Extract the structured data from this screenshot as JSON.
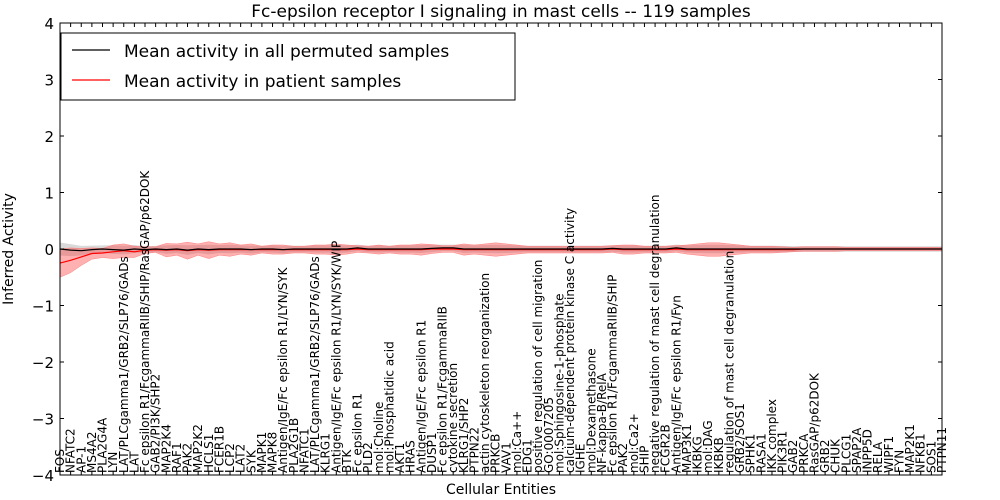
{
  "chart_data": {
    "type": "line",
    "title": "Fc-epsilon receptor I signaling in mast cells -- 119 samples",
    "xlabel": "Cellular Entities",
    "ylabel": "Inferred Activity",
    "ylim": [
      -4,
      4
    ],
    "yticks": [
      "4",
      "3",
      "2",
      "1",
      "0",
      "−1",
      "−2",
      "−3",
      "−4"
    ],
    "legend": {
      "position": "top-left",
      "entries": [
        {
          "label": "Mean activity in all permuted samples",
          "color": "#000000"
        },
        {
          "label": "Mean activity in patient samples",
          "color": "#ff0000"
        }
      ]
    },
    "categories": [
      "FOS",
      "NFATC2",
      "AP-1",
      "MS4A2",
      "PLA2G4A",
      "LYN",
      "LAT/PLCgamma1/GRB2/SLP76/GADs",
      "LAT",
      "Fc epsilon R1/FcgammaRIIB/SHIP/RasGAP/p62DOK",
      "GAB2/PI3K/SHP2",
      "MAP2K4",
      "RAF1",
      "PAK2",
      "MAP2K2",
      "HCLS1",
      "FCER1B",
      "LCP2",
      "LAT2",
      "SYK",
      "MAPK1",
      "MAPK8",
      "Antigen/IgE/Fc epsilon R1/LYN/SYK",
      "PLA2G1B",
      "NFATC1",
      "LAT/PLCgamma1/GRB2/SLP76/GADs",
      "KLRG1",
      "Antigen/IgE/Fc epsilon R1/LYN/SYK/WIP",
      "BTK",
      "Fc epsilon R1",
      "PLD2",
      "mol:Choline",
      "mol:Phosphatidic acid",
      "AKT1",
      "HRAS",
      "Antigen/IgE/Fc epsilon R1",
      "DUSP1",
      "Fc epsilon R1/FcgammaRIIB",
      "cytokine secretion",
      "KLRG1/SHP2",
      "PTPN22",
      "actin cytoskeleton reorganization",
      "PRKCB",
      "VAV1",
      "mol:Ca++",
      "EDG1",
      "positive regulation of cell migration",
      "GO:0007205",
      "mol:Sphingosine-1-phosphate",
      "calcium-dependent protein kinase C activity",
      "IGHE",
      "mol:Dexamethasone",
      "NF-kappa-B/RelA",
      "Fc epsilon R1/FcgammaRIIB/SHIP",
      "PAK2",
      "mol:Ca2+",
      "SHIP",
      "negative regulation of mast cell degranulation",
      "FCGR2B",
      "Antigen/IgE/Fc epsilon R1/Fyn",
      "MAP3K1",
      "IKBKG",
      "mol:DAG",
      "IKBKB",
      "regulation of mast cell degranulation",
      "GRB2/SOS1",
      "SPHK1",
      "RASA1",
      "IKK complex",
      "PIK3R1",
      "GAB2",
      "PRKCA",
      "RasGAP/p62DOK",
      "GRB2",
      "CHUK",
      "PLCG1",
      "SPAP2A",
      "INPP5D",
      "RELA",
      "WIPF1",
      "FYN",
      "MAP2K1",
      "NFKB1",
      "SOS1",
      "PTPN11"
    ],
    "visible_tick_labels": [
      "FOS",
      "NFATC2",
      "AP-1",
      "MS4A2",
      "PLA2G4A",
      "LYN",
      "LAT/PLCgamma1/GRB2/SLP76/GADs",
      "LAT",
      "Fc epsilon R1/FcgammaRIIB/SHIP/RasGAP/p62DOK",
      "GAB2/PI3K/SHP2",
      "MAP2K4",
      "RAF1",
      "PAK2",
      "MAP2K2",
      "HCLS1",
      "FCER1B",
      "LCP2",
      "LAT2",
      "SYK",
      "MAPK1",
      "MAPK8",
      "Antigen/IgE/Fc epsilon R1/LYN/SYK",
      "PLA2G1B",
      "NFATC1",
      "LAT/PLCgamma1/GRB2/SLP76/GADs",
      "KLRG1",
      "Antigen/IgE/Fc epsilon R1/LYN/SYK/WIP",
      "BTK",
      "Fc epsilon R1",
      "PLD2",
      "mol:Choline",
      "mol:Phosphatidic acid",
      "AKT1",
      "HRAS",
      "Antigen/IgE/Fc epsilon R1",
      "DUSP1",
      "Fc epsilon R1/FcgammaRIIB",
      "cytokine secretion",
      "KLRG1/SHP2",
      "PTPN22",
      "actin cytoskeleton reorganization",
      "PRKCB",
      "VAV1",
      "mol:Ca++",
      "EDG1",
      "positive regulation of cell migration",
      "GO:0007205",
      "mol:Sphingosine-1-phosphate",
      "calcium-dependent protein kinase C activity",
      "IGHE",
      "mol:Dexamethasone",
      "NF-kappa-B/RelA",
      "Fc epsilon R1/FcgammaRIIB/SHIP",
      "PAK2",
      "mol:Ca2+",
      "SHIP",
      "negative regulation of mast cell degranulation",
      "FCGR2B",
      "Antigen/IgE/Fc epsilon R1/Fyn",
      "MAP3K1",
      "IKBKG",
      "mol:DAG",
      "IKBKB",
      "regulation of mast cell degranulation",
      "GRB2/SOS1",
      "SPHK1",
      "RASA1",
      "IKK complex",
      "PIK3R1",
      "GAB2",
      "PRKCA",
      "RasGAP/p62DOK",
      "GRB2",
      "CHUK",
      "PLCG1",
      "SPAP2A",
      "INPP5D",
      "RELA",
      "WIPF1",
      "FYN",
      "MAP2K1",
      "NFKB1",
      "SOS1",
      "PTPN11"
    ],
    "series": [
      {
        "name": "Mean activity in all permuted samples",
        "color": "#000000",
        "values": [
          0.0,
          -0.02,
          -0.03,
          -0.01,
          0.0,
          -0.01,
          -0.02,
          0.0,
          -0.01,
          0.0,
          -0.01,
          0.0,
          -0.02,
          0.0,
          -0.01,
          0.0,
          0.0,
          0.0,
          -0.01,
          0.0,
          0.0,
          -0.01,
          0.0,
          0.0,
          0.0,
          0.0,
          0.0,
          0.0,
          0.02,
          0.0,
          0.0,
          0.0,
          0.0,
          0.0,
          0.0,
          0.01,
          0.02,
          0.02,
          0.0,
          0.0,
          0.0,
          0.0,
          0.0,
          0.0,
          0.0,
          0.0,
          0.0,
          0.0,
          0.0,
          0.0,
          0.0,
          0.0,
          0.01,
          0.0,
          0.0,
          0.0,
          0.0,
          0.0,
          0.02,
          0.0,
          0.0,
          0.0,
          0.0,
          0.0,
          0.0,
          0.0,
          0.0,
          0.0,
          0.0,
          0.0,
          0.0,
          0.0,
          0.0,
          0.0,
          0.0,
          0.0,
          0.0,
          0.0,
          0.0,
          0.0,
          0.0,
          0.0,
          0.0,
          0.0
        ]
      },
      {
        "name": "Mean activity in patient samples",
        "color": "#ff0000",
        "values": [
          -0.25,
          -0.2,
          -0.14,
          -0.08,
          -0.07,
          -0.05,
          -0.03,
          -0.05,
          -0.02,
          -0.01,
          -0.02,
          -0.01,
          -0.03,
          -0.01,
          -0.02,
          -0.01,
          -0.01,
          -0.01,
          -0.01,
          -0.01,
          -0.01,
          -0.01,
          -0.01,
          -0.01,
          -0.01,
          -0.01,
          -0.01,
          -0.01,
          0.0,
          -0.01,
          -0.01,
          -0.01,
          -0.01,
          -0.01,
          -0.01,
          0.0,
          0.0,
          0.0,
          -0.01,
          -0.01,
          -0.01,
          -0.01,
          -0.01,
          -0.01,
          -0.01,
          -0.01,
          -0.01,
          -0.01,
          -0.01,
          -0.01,
          -0.01,
          -0.01,
          0.0,
          -0.01,
          -0.01,
          -0.01,
          -0.01,
          -0.01,
          0.0,
          -0.01,
          -0.01,
          -0.01,
          -0.01,
          -0.01,
          -0.01,
          -0.01,
          -0.01,
          -0.01,
          -0.01,
          -0.01,
          0.0,
          0.0,
          0.0,
          0.0,
          0.0,
          0.0,
          0.0,
          0.0,
          0.0,
          0.0,
          0.0,
          0.0,
          0.0,
          0.0
        ]
      }
    ],
    "band_halfwidth": [
      0.25,
      0.22,
      0.15,
      0.1,
      0.08,
      0.12,
      0.12,
      0.1,
      0.06,
      0.05,
      0.12,
      0.1,
      0.15,
      0.1,
      0.15,
      0.1,
      0.12,
      0.08,
      0.1,
      0.06,
      0.08,
      0.08,
      0.06,
      0.06,
      0.08,
      0.08,
      0.1,
      0.08,
      0.06,
      0.06,
      0.08,
      0.06,
      0.08,
      0.08,
      0.1,
      0.08,
      0.06,
      0.06,
      0.1,
      0.08,
      0.1,
      0.12,
      0.1,
      0.08,
      0.06,
      0.06,
      0.06,
      0.06,
      0.06,
      0.06,
      0.06,
      0.06,
      0.06,
      0.08,
      0.08,
      0.06,
      0.06,
      0.06,
      0.06,
      0.08,
      0.1,
      0.12,
      0.12,
      0.1,
      0.08,
      0.06,
      0.06,
      0.06,
      0.05,
      0.04,
      0.04,
      0.04,
      0.04,
      0.04,
      0.03,
      0.03,
      0.03,
      0.03,
      0.03,
      0.03,
      0.03,
      0.03,
      0.03,
      0.03
    ],
    "grid": false
  }
}
